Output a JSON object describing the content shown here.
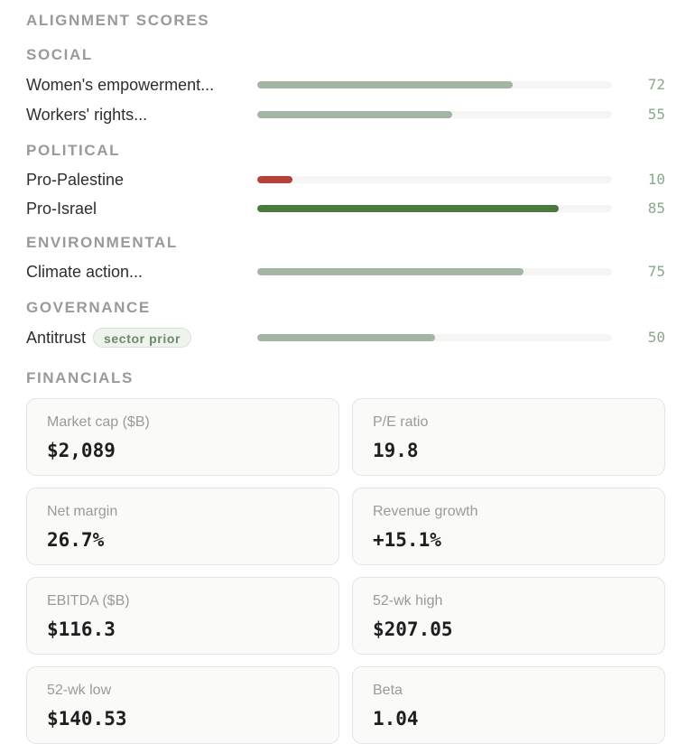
{
  "alignment": {
    "title": "ALIGNMENT SCORES",
    "sections": [
      {
        "heading": "SOCIAL",
        "items": [
          {
            "label": "Women's empowerment...",
            "score": 72,
            "tone": "neutral"
          },
          {
            "label": "Workers' rights...",
            "score": 55,
            "tone": "neutral"
          }
        ]
      },
      {
        "heading": "POLITICAL",
        "items": [
          {
            "label": "Pro-Palestine",
            "score": 10,
            "tone": "negative"
          },
          {
            "label": "Pro-Israel",
            "score": 85,
            "tone": "positive"
          }
        ]
      },
      {
        "heading": "ENVIRONMENTAL",
        "items": [
          {
            "label": "Climate action...",
            "score": 75,
            "tone": "neutral"
          }
        ]
      },
      {
        "heading": "GOVERNANCE",
        "items": [
          {
            "label": "Antitrust",
            "score": 50,
            "tone": "neutral",
            "badge": "sector prior"
          }
        ]
      }
    ],
    "colors": {
      "neutral": "#a3b5a3",
      "negative": "#b84038",
      "positive": "#4a7a3c"
    }
  },
  "financials": {
    "title": "FINANCIALS",
    "cards": [
      {
        "key": "Market cap ($B)",
        "value": "$2,089"
      },
      {
        "key": "P/E ratio",
        "value": "19.8"
      },
      {
        "key": "Net margin",
        "value": "26.7%"
      },
      {
        "key": "Revenue growth",
        "value": "+15.1%"
      },
      {
        "key": "EBITDA ($B)",
        "value": "$116.3"
      },
      {
        "key": "52-wk high",
        "value": "$207.05"
      },
      {
        "key": "52-wk low",
        "value": "$140.53"
      },
      {
        "key": "Beta",
        "value": "1.04"
      }
    ]
  }
}
